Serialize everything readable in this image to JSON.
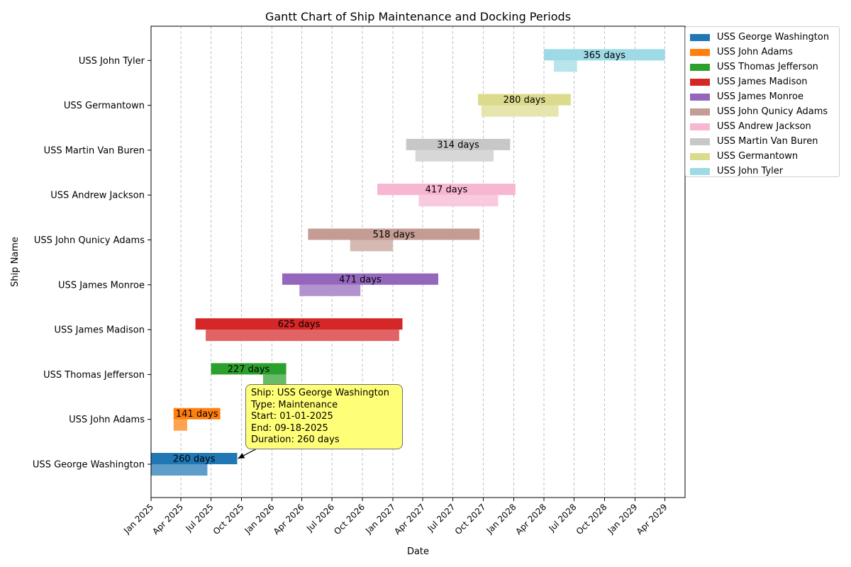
{
  "chart_data": {
    "type": "gantt",
    "title": "Gantt Chart of Ship Maintenance and Docking Periods",
    "xlabel": "Date",
    "ylabel": "Ship Name",
    "xlim": [
      "2025-01-01",
      "2029-06-01"
    ],
    "x_tick_labels": [
      "Jan 2025",
      "Apr 2025",
      "Jul 2025",
      "Oct 2025",
      "Jan 2026",
      "Apr 2026",
      "Jul 2026",
      "Oct 2026",
      "Jan 2027",
      "Apr 2027",
      "Jul 2027",
      "Oct 2027",
      "Jan 2028",
      "Apr 2028",
      "Jul 2028",
      "Oct 2028",
      "Jan 2029",
      "Apr 2029"
    ],
    "grid": "x-dashed",
    "legend_position": "outside-top-right",
    "series": [
      {
        "name": "USS George Washington",
        "color": "#1f77b4",
        "maintenance": {
          "start": "2025-01-01",
          "end": "2025-09-18",
          "days": 260
        },
        "docking": {
          "start": "2025-01-01",
          "end": "2025-06-20"
        }
      },
      {
        "name": "USS John Adams",
        "color": "#ff7f0e",
        "maintenance": {
          "start": "2025-03-10",
          "end": "2025-07-29",
          "days": 141
        },
        "docking": {
          "start": "2025-03-10",
          "end": "2025-04-20"
        }
      },
      {
        "name": "USS Thomas Jefferson",
        "color": "#2ca02c",
        "maintenance": {
          "start": "2025-07-01",
          "end": "2026-02-13",
          "days": 227
        },
        "docking": {
          "start": "2025-12-05",
          "end": "2026-02-13"
        }
      },
      {
        "name": "USS James Madison",
        "color": "#d62728",
        "maintenance": {
          "start": "2025-05-15",
          "end": "2027-01-30",
          "days": 625
        },
        "docking": {
          "start": "2025-06-15",
          "end": "2027-01-20"
        }
      },
      {
        "name": "USS James Monroe",
        "color": "#9467bd",
        "maintenance": {
          "start": "2026-02-01",
          "end": "2027-05-18",
          "days": 471
        },
        "docking": {
          "start": "2026-03-25",
          "end": "2026-09-25"
        }
      },
      {
        "name": "USS John Qunicy Adams",
        "color": "#c49c94",
        "maintenance": {
          "start": "2026-04-20",
          "end": "2027-09-20",
          "days": 518
        },
        "docking": {
          "start": "2026-08-25",
          "end": "2027-01-01"
        }
      },
      {
        "name": "USS Andrew Jackson",
        "color": "#f7b6d2",
        "maintenance": {
          "start": "2026-11-15",
          "end": "2028-01-06",
          "days": 417
        },
        "docking": {
          "start": "2027-03-20",
          "end": "2027-11-15"
        }
      },
      {
        "name": "USS Martin Van Buren",
        "color": "#c7c7c7",
        "maintenance": {
          "start": "2027-02-10",
          "end": "2027-12-21",
          "days": 314
        },
        "docking": {
          "start": "2027-03-10",
          "end": "2027-11-01"
        }
      },
      {
        "name": "USS Germantown",
        "color": "#dbdb8d",
        "maintenance": {
          "start": "2027-09-15",
          "end": "2028-06-21",
          "days": 280
        },
        "docking": {
          "start": "2027-09-25",
          "end": "2028-05-15"
        }
      },
      {
        "name": "USS John Tyler",
        "color": "#9edae5",
        "maintenance": {
          "start": "2028-04-01",
          "end": "2029-04-01",
          "days": 365
        },
        "docking": {
          "start": "2028-05-01",
          "end": "2028-07-10"
        }
      }
    ],
    "annotation": {
      "ship_line": "Ship: USS George Washington",
      "type_line": "Type: Maintenance",
      "start_line": "Start: 01-01-2025",
      "end_line": "End: 09-18-2025",
      "duration_line": "Duration: 260 days",
      "background": "#ffff77",
      "target_date": "2025-09-18",
      "target_ship_index": 0
    }
  }
}
